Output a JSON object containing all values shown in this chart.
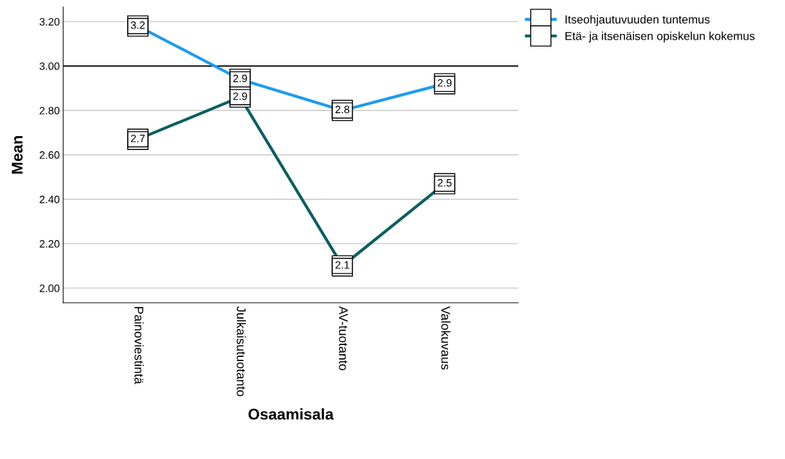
{
  "chart_data": {
    "type": "line",
    "xlabel": "Osaamisala",
    "ylabel": "Mean",
    "categories": [
      "Painoviestintä",
      "Julkaisutuotanto",
      "AV-tuotanto",
      "Valokuvaus"
    ],
    "series": [
      {
        "name": "Itseohjautuvuuden tuntemus",
        "color": "#1e9bf0",
        "values": [
          3.18,
          2.94,
          2.8,
          2.92
        ],
        "value_labels": [
          "3.2",
          "2.9",
          "2.8",
          "2.9"
        ]
      },
      {
        "name": "Etä- ja itsenäisen opiskelun kokemus",
        "color": "#0b5f60",
        "values": [
          2.67,
          2.86,
          2.1,
          2.47
        ],
        "value_labels": [
          "2.7",
          "2.9",
          "2.1",
          "2.5"
        ]
      }
    ],
    "ylim": [
      1.934,
      3.266
    ],
    "yticks": [
      {
        "value": 2.0,
        "label": "2.00"
      },
      {
        "value": 2.2,
        "label": "2.20"
      },
      {
        "value": 2.4,
        "label": "2.40"
      },
      {
        "value": 2.6,
        "label": "2.60"
      },
      {
        "value": 2.8,
        "label": "2.80"
      },
      {
        "value": 3.0,
        "label": "3.00"
      },
      {
        "value": 3.2,
        "label": "3.20"
      }
    ],
    "ref_lines": [
      {
        "axis": "y",
        "value": 3.0,
        "color": "#000000"
      }
    ],
    "grid": "y",
    "legend": "top right",
    "marker": "square",
    "line_style": "solid"
  }
}
